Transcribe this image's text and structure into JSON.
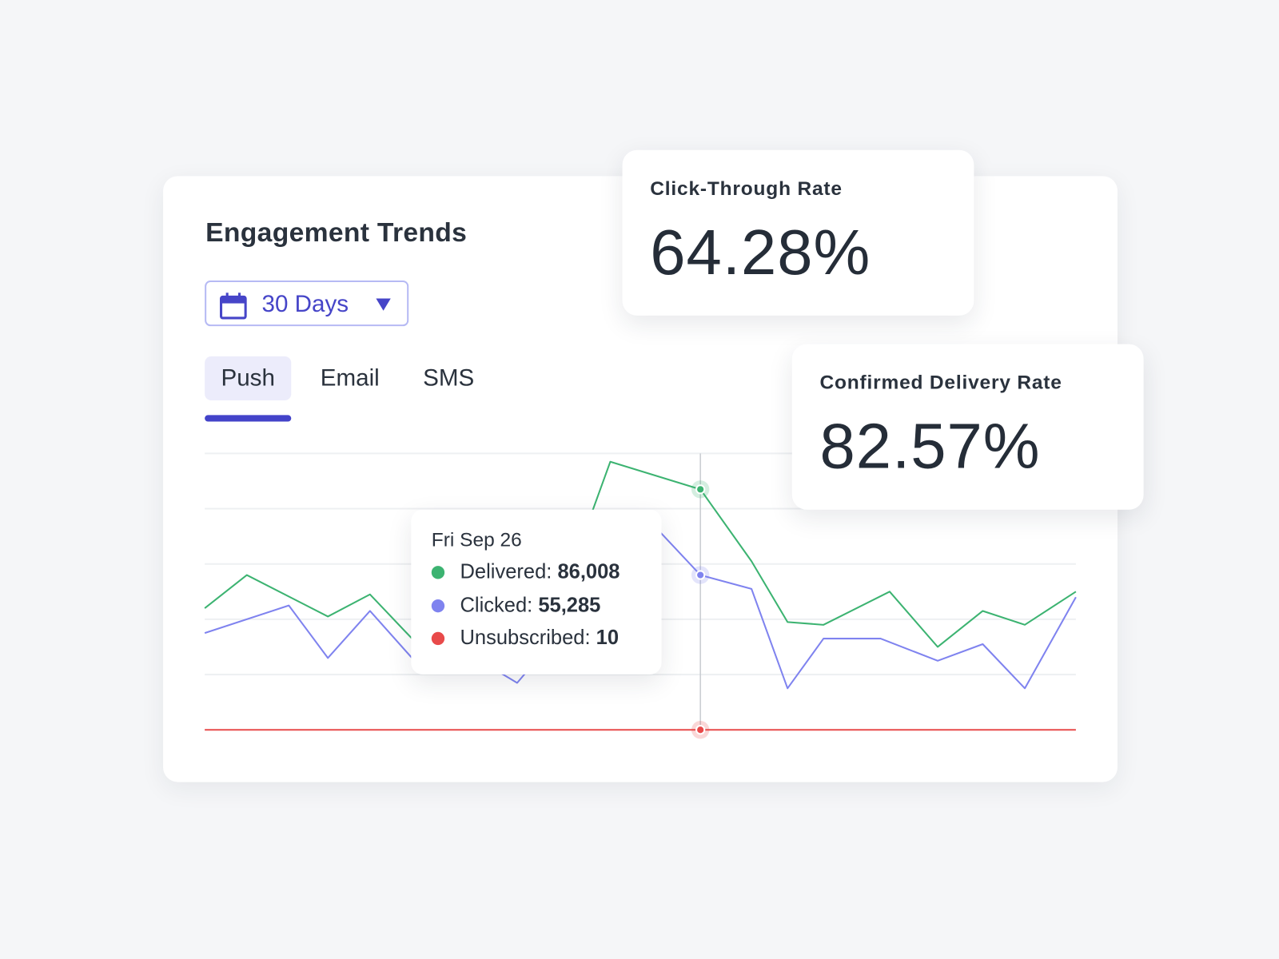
{
  "title": "Engagement Trends",
  "date_range": {
    "label": "30 Days",
    "icon": "calendar-icon"
  },
  "tabs": [
    {
      "label": "Push",
      "active": true
    },
    {
      "label": "Email",
      "active": false
    },
    {
      "label": "SMS",
      "active": false
    }
  ],
  "kpis": [
    {
      "label": "Click-Through Rate",
      "value": "64.28%"
    },
    {
      "label": "Confirmed Delivery Rate",
      "value": "82.57%"
    }
  ],
  "tooltip": {
    "date": "Fri Sep 26",
    "rows": [
      {
        "label": "Delivered:",
        "value": "86,008",
        "color": "#3cb371"
      },
      {
        "label": "Clicked:",
        "value": "55,285",
        "color": "#7f83ef"
      },
      {
        "label": "Unsubscribed:",
        "value": "10",
        "color": "#e84a4a"
      }
    ]
  },
  "colors": {
    "accent": "#4343c9",
    "delivered": "#3cb371",
    "clicked": "#7f83ef",
    "unsubscribed": "#e84a4a"
  },
  "chart_data": {
    "type": "line",
    "title": "",
    "xlabel": "",
    "ylabel": "",
    "xlim": [
      0,
      29
    ],
    "ylim": [
      0,
      100
    ],
    "grid": true,
    "highlight_x": 16.5,
    "series": [
      {
        "name": "Delivered",
        "color": "#3cb371",
        "x": [
          0,
          1.4,
          4.1,
          5.5,
          6.9,
          8.4,
          10.6,
          12.3,
          13.5,
          16.5,
          18.2,
          19.4,
          20.6,
          22.8,
          24.4,
          25.9,
          27.3,
          29
        ],
        "y": [
          44,
          56,
          41,
          49,
          33,
          27,
          34,
          61,
          97,
          87,
          61,
          39,
          38,
          50,
          30,
          43,
          38,
          50
        ]
      },
      {
        "name": "Clicked",
        "color": "#7f83ef",
        "x": [
          0,
          2.8,
          4.1,
          5.5,
          6.9,
          8.4,
          10.4,
          12.2,
          14.6,
          16.5,
          18.2,
          19.4,
          20.6,
          22.5,
          24.4,
          25.9,
          27.3,
          29
        ],
        "y": [
          35,
          45,
          26,
          43,
          26,
          30,
          17,
          40,
          78,
          56,
          51,
          15,
          33,
          33,
          25,
          31,
          15,
          48
        ]
      },
      {
        "name": "Unsubscribed",
        "color": "#e84a4a",
        "x": [
          0,
          29
        ],
        "y": [
          0,
          0
        ]
      }
    ]
  }
}
